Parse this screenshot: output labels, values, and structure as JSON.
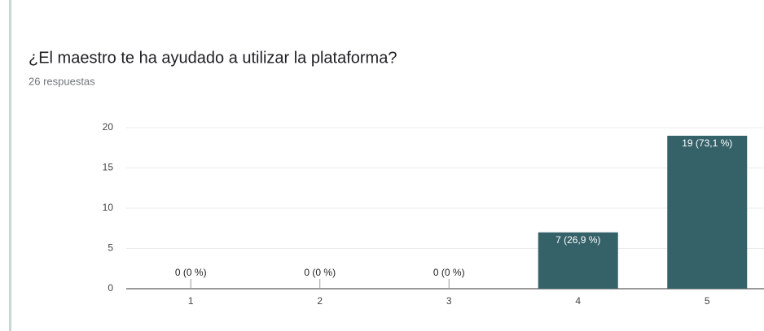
{
  "chart_data": {
    "type": "bar",
    "title": "¿El maestro te ha ayudado a utilizar la plataforma?",
    "subtitle": "26 respuestas",
    "categories": [
      "1",
      "2",
      "3",
      "4",
      "5"
    ],
    "values": [
      0,
      0,
      0,
      7,
      19
    ],
    "value_labels": [
      "0 (0 %)",
      "0 (0 %)",
      "0 (0 %)",
      "7 (26,9 %)",
      "19 (73,1 %)"
    ],
    "color": "#356169",
    "ylim": [
      0,
      20
    ],
    "yticks": [
      0,
      5,
      10,
      15,
      20
    ],
    "grid": true
  }
}
